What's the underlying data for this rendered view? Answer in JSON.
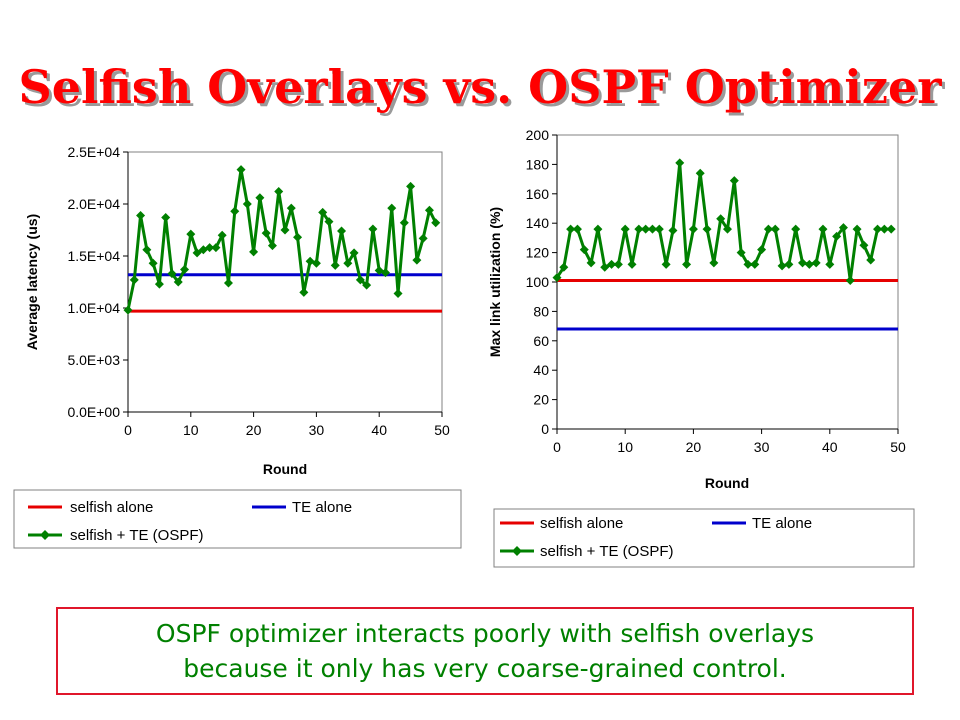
{
  "slide": {
    "title": "Selfish Overlays vs. OSPF Optimizer",
    "caption_line1": "OSPF optimizer interacts poorly with selfish overlays",
    "caption_line2": "because it only has very coarse-grained control."
  },
  "colors": {
    "title": "#ff0000",
    "caption_text": "#008000",
    "caption_border": "#e0162b",
    "selfish_alone": "#e60000",
    "te_alone": "#0000cc",
    "selfish_te": "#008000"
  },
  "chart_data": [
    {
      "type": "line",
      "title": "",
      "xlabel": "Round",
      "ylabel": "Average latency (us)",
      "xlim": [
        0,
        50
      ],
      "ylim": [
        0,
        25000
      ],
      "x_ticks": [
        "0",
        "10",
        "20",
        "30",
        "40",
        "50"
      ],
      "y_ticks": [
        "0.0E+00",
        "5.0E+03",
        "1.0E+04",
        "1.5E+04",
        "2.0E+04",
        "2.5E+04"
      ],
      "grid": false,
      "legend": "bottom",
      "series": [
        {
          "name": "selfish alone",
          "kind": "constant",
          "color": "#e60000",
          "y": 9700
        },
        {
          "name": "TE alone",
          "kind": "constant",
          "color": "#0000cc",
          "y": 13200
        },
        {
          "name": "selfish + TE (OSPF)",
          "kind": "markers",
          "color": "#008000",
          "x": [
            0,
            1,
            2,
            3,
            4,
            5,
            6,
            7,
            8,
            9,
            10,
            11,
            12,
            13,
            14,
            15,
            16,
            17,
            18,
            19,
            20,
            21,
            22,
            23,
            24,
            25,
            26,
            27,
            28,
            29,
            30,
            31,
            32,
            33,
            34,
            35,
            36,
            37,
            38,
            39,
            40,
            41,
            42,
            43,
            44,
            45,
            46,
            47,
            48,
            49
          ],
          "values": [
            9800,
            12700,
            18900,
            15600,
            14300,
            12300,
            18700,
            13300,
            12500,
            13700,
            17100,
            15300,
            15600,
            15800,
            15800,
            17000,
            12400,
            19300,
            23300,
            20000,
            15400,
            20600,
            17200,
            16000,
            21200,
            17500,
            19600,
            16800,
            11500,
            14500,
            14300,
            19200,
            18300,
            14100,
            17400,
            14300,
            15300,
            12700,
            12200,
            17600,
            13600,
            13400,
            19600,
            11400,
            18200,
            21700,
            14600,
            16700,
            19400,
            18200
          ]
        }
      ]
    },
    {
      "type": "line",
      "title": "",
      "xlabel": "Round",
      "ylabel": "Max link utilization (%)",
      "xlim": [
        0,
        50
      ],
      "ylim": [
        0,
        200
      ],
      "x_ticks": [
        "0",
        "10",
        "20",
        "30",
        "40",
        "50"
      ],
      "y_ticks": [
        "0",
        "20",
        "40",
        "60",
        "80",
        "100",
        "120",
        "140",
        "160",
        "180",
        "200"
      ],
      "grid": false,
      "legend": "bottom",
      "series": [
        {
          "name": "selfish alone",
          "kind": "constant",
          "color": "#e60000",
          "y": 101
        },
        {
          "name": "TE alone",
          "kind": "constant",
          "color": "#0000cc",
          "y": 68
        },
        {
          "name": "selfish + TE (OSPF)",
          "kind": "markers",
          "color": "#008000",
          "x": [
            0,
            1,
            2,
            3,
            4,
            5,
            6,
            7,
            8,
            9,
            10,
            11,
            12,
            13,
            14,
            15,
            16,
            17,
            18,
            19,
            20,
            21,
            22,
            23,
            24,
            25,
            26,
            27,
            28,
            29,
            30,
            31,
            32,
            33,
            34,
            35,
            36,
            37,
            38,
            39,
            40,
            41,
            42,
            43,
            44,
            45,
            46,
            47,
            48,
            49
          ],
          "values": [
            103,
            110,
            136,
            136,
            122,
            113,
            136,
            110,
            112,
            112,
            136,
            112,
            136,
            136,
            136,
            136,
            112,
            135,
            181,
            112,
            136,
            174,
            136,
            113,
            143,
            136,
            169,
            120,
            112,
            112,
            122,
            136,
            136,
            111,
            112,
            136,
            113,
            112,
            113,
            136,
            112,
            131,
            137,
            101,
            136,
            125,
            115,
            136,
            136,
            136
          ]
        }
      ]
    }
  ]
}
